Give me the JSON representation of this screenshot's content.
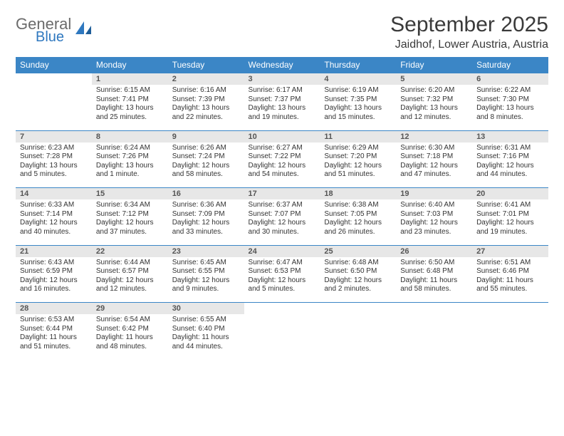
{
  "logo": {
    "line1": "General",
    "line2": "Blue"
  },
  "title": "September 2025",
  "location": "Jaidhof, Lower Austria, Austria",
  "day_headers": [
    "Sunday",
    "Monday",
    "Tuesday",
    "Wednesday",
    "Thursday",
    "Friday",
    "Saturday"
  ],
  "colors": {
    "header_bg": "#3b86c6",
    "header_fg": "#ffffff",
    "daynum_bg": "#e7e7e7",
    "rule": "#3b86c6",
    "logo_gray": "#6b6b6b",
    "logo_blue": "#2f78bf"
  },
  "weeks": [
    [
      null,
      {
        "n": "1",
        "sunrise": "Sunrise: 6:15 AM",
        "sunset": "Sunset: 7:41 PM",
        "day1": "Daylight: 13 hours",
        "day2": "and 25 minutes."
      },
      {
        "n": "2",
        "sunrise": "Sunrise: 6:16 AM",
        "sunset": "Sunset: 7:39 PM",
        "day1": "Daylight: 13 hours",
        "day2": "and 22 minutes."
      },
      {
        "n": "3",
        "sunrise": "Sunrise: 6:17 AM",
        "sunset": "Sunset: 7:37 PM",
        "day1": "Daylight: 13 hours",
        "day2": "and 19 minutes."
      },
      {
        "n": "4",
        "sunrise": "Sunrise: 6:19 AM",
        "sunset": "Sunset: 7:35 PM",
        "day1": "Daylight: 13 hours",
        "day2": "and 15 minutes."
      },
      {
        "n": "5",
        "sunrise": "Sunrise: 6:20 AM",
        "sunset": "Sunset: 7:32 PM",
        "day1": "Daylight: 13 hours",
        "day2": "and 12 minutes."
      },
      {
        "n": "6",
        "sunrise": "Sunrise: 6:22 AM",
        "sunset": "Sunset: 7:30 PM",
        "day1": "Daylight: 13 hours",
        "day2": "and 8 minutes."
      }
    ],
    [
      {
        "n": "7",
        "sunrise": "Sunrise: 6:23 AM",
        "sunset": "Sunset: 7:28 PM",
        "day1": "Daylight: 13 hours",
        "day2": "and 5 minutes."
      },
      {
        "n": "8",
        "sunrise": "Sunrise: 6:24 AM",
        "sunset": "Sunset: 7:26 PM",
        "day1": "Daylight: 13 hours",
        "day2": "and 1 minute."
      },
      {
        "n": "9",
        "sunrise": "Sunrise: 6:26 AM",
        "sunset": "Sunset: 7:24 PM",
        "day1": "Daylight: 12 hours",
        "day2": "and 58 minutes."
      },
      {
        "n": "10",
        "sunrise": "Sunrise: 6:27 AM",
        "sunset": "Sunset: 7:22 PM",
        "day1": "Daylight: 12 hours",
        "day2": "and 54 minutes."
      },
      {
        "n": "11",
        "sunrise": "Sunrise: 6:29 AM",
        "sunset": "Sunset: 7:20 PM",
        "day1": "Daylight: 12 hours",
        "day2": "and 51 minutes."
      },
      {
        "n": "12",
        "sunrise": "Sunrise: 6:30 AM",
        "sunset": "Sunset: 7:18 PM",
        "day1": "Daylight: 12 hours",
        "day2": "and 47 minutes."
      },
      {
        "n": "13",
        "sunrise": "Sunrise: 6:31 AM",
        "sunset": "Sunset: 7:16 PM",
        "day1": "Daylight: 12 hours",
        "day2": "and 44 minutes."
      }
    ],
    [
      {
        "n": "14",
        "sunrise": "Sunrise: 6:33 AM",
        "sunset": "Sunset: 7:14 PM",
        "day1": "Daylight: 12 hours",
        "day2": "and 40 minutes."
      },
      {
        "n": "15",
        "sunrise": "Sunrise: 6:34 AM",
        "sunset": "Sunset: 7:12 PM",
        "day1": "Daylight: 12 hours",
        "day2": "and 37 minutes."
      },
      {
        "n": "16",
        "sunrise": "Sunrise: 6:36 AM",
        "sunset": "Sunset: 7:09 PM",
        "day1": "Daylight: 12 hours",
        "day2": "and 33 minutes."
      },
      {
        "n": "17",
        "sunrise": "Sunrise: 6:37 AM",
        "sunset": "Sunset: 7:07 PM",
        "day1": "Daylight: 12 hours",
        "day2": "and 30 minutes."
      },
      {
        "n": "18",
        "sunrise": "Sunrise: 6:38 AM",
        "sunset": "Sunset: 7:05 PM",
        "day1": "Daylight: 12 hours",
        "day2": "and 26 minutes."
      },
      {
        "n": "19",
        "sunrise": "Sunrise: 6:40 AM",
        "sunset": "Sunset: 7:03 PM",
        "day1": "Daylight: 12 hours",
        "day2": "and 23 minutes."
      },
      {
        "n": "20",
        "sunrise": "Sunrise: 6:41 AM",
        "sunset": "Sunset: 7:01 PM",
        "day1": "Daylight: 12 hours",
        "day2": "and 19 minutes."
      }
    ],
    [
      {
        "n": "21",
        "sunrise": "Sunrise: 6:43 AM",
        "sunset": "Sunset: 6:59 PM",
        "day1": "Daylight: 12 hours",
        "day2": "and 16 minutes."
      },
      {
        "n": "22",
        "sunrise": "Sunrise: 6:44 AM",
        "sunset": "Sunset: 6:57 PM",
        "day1": "Daylight: 12 hours",
        "day2": "and 12 minutes."
      },
      {
        "n": "23",
        "sunrise": "Sunrise: 6:45 AM",
        "sunset": "Sunset: 6:55 PM",
        "day1": "Daylight: 12 hours",
        "day2": "and 9 minutes."
      },
      {
        "n": "24",
        "sunrise": "Sunrise: 6:47 AM",
        "sunset": "Sunset: 6:53 PM",
        "day1": "Daylight: 12 hours",
        "day2": "and 5 minutes."
      },
      {
        "n": "25",
        "sunrise": "Sunrise: 6:48 AM",
        "sunset": "Sunset: 6:50 PM",
        "day1": "Daylight: 12 hours",
        "day2": "and 2 minutes."
      },
      {
        "n": "26",
        "sunrise": "Sunrise: 6:50 AM",
        "sunset": "Sunset: 6:48 PM",
        "day1": "Daylight: 11 hours",
        "day2": "and 58 minutes."
      },
      {
        "n": "27",
        "sunrise": "Sunrise: 6:51 AM",
        "sunset": "Sunset: 6:46 PM",
        "day1": "Daylight: 11 hours",
        "day2": "and 55 minutes."
      }
    ],
    [
      {
        "n": "28",
        "sunrise": "Sunrise: 6:53 AM",
        "sunset": "Sunset: 6:44 PM",
        "day1": "Daylight: 11 hours",
        "day2": "and 51 minutes."
      },
      {
        "n": "29",
        "sunrise": "Sunrise: 6:54 AM",
        "sunset": "Sunset: 6:42 PM",
        "day1": "Daylight: 11 hours",
        "day2": "and 48 minutes."
      },
      {
        "n": "30",
        "sunrise": "Sunrise: 6:55 AM",
        "sunset": "Sunset: 6:40 PM",
        "day1": "Daylight: 11 hours",
        "day2": "and 44 minutes."
      },
      null,
      null,
      null,
      null
    ]
  ]
}
